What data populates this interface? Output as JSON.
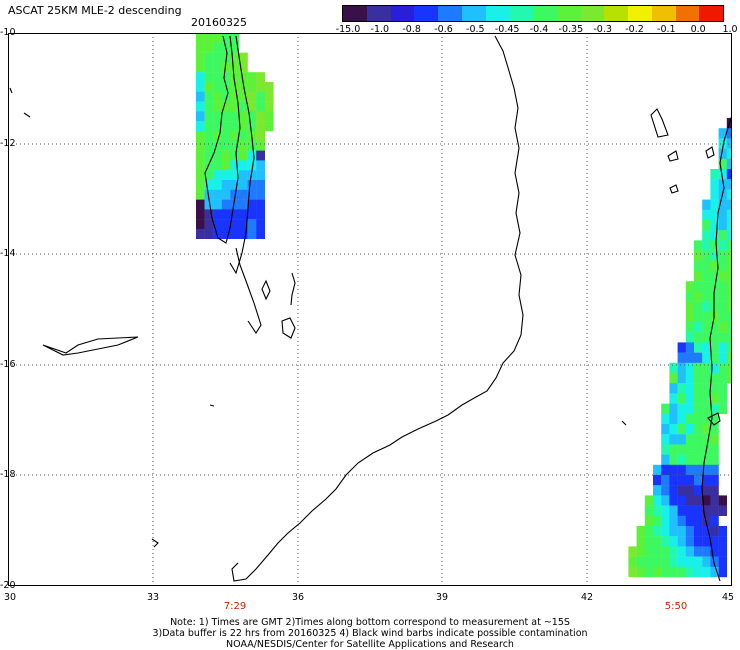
{
  "header": {
    "title": "ASCAT 25KM MLE-2 descending",
    "date": "20160325"
  },
  "colorbar": {
    "colors": [
      "#3a0f4a",
      "#3a2fa0",
      "#2a1fd8",
      "#1a34ff",
      "#1e7bff",
      "#20c0ff",
      "#18f0e8",
      "#22f8b0",
      "#3df860",
      "#5cf23a",
      "#7ce830",
      "#b8e000",
      "#f0f000",
      "#f0c000",
      "#f07000",
      "#f01800"
    ],
    "ticks": [
      "-15.0",
      "-1.0",
      "-0.8",
      "-0.6",
      "-0.5",
      "-0.45",
      "-0.4",
      "-0.35",
      "-0.3",
      "-0.2",
      "-0.1",
      "0.0",
      "1.0"
    ]
  },
  "map": {
    "lat_labels": [
      "-10",
      "-12",
      "-14",
      "-16",
      "-18",
      "-20"
    ],
    "lon_labels": [
      "30",
      "33",
      "36",
      "39",
      "42",
      "45"
    ],
    "lon_range": [
      30,
      45
    ],
    "lat_range": [
      -10,
      -20
    ]
  },
  "swaths": [
    {
      "time": "7:29"
    },
    {
      "time": "5:50"
    }
  ],
  "notes": {
    "line1": "Note: 1) Times are GMT 2)Times along bottom correspond to measurement at ~15S",
    "line2": "3)Data buffer is 22 hrs from 20160325 4) Black wind barbs indicate possible contamination",
    "line3": "NOAA/NESDIS/Center for Satellite Applications and Research"
  }
}
